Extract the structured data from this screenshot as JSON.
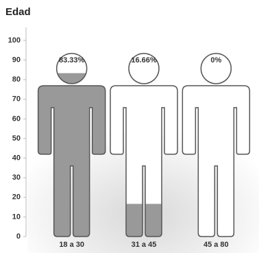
{
  "chart_data": {
    "type": "pictograph",
    "title": "Edad",
    "categories": [
      "18 a 30",
      "31 a 45",
      "45 a 80"
    ],
    "values": [
      83.33,
      16.66,
      0
    ],
    "value_labels": [
      "83.33%",
      "16.66%",
      "0%"
    ],
    "color": "#999999",
    "ylim": [
      0,
      100
    ],
    "yticks": [
      0,
      10,
      20,
      30,
      40,
      50,
      60,
      70,
      80,
      90,
      100
    ]
  }
}
